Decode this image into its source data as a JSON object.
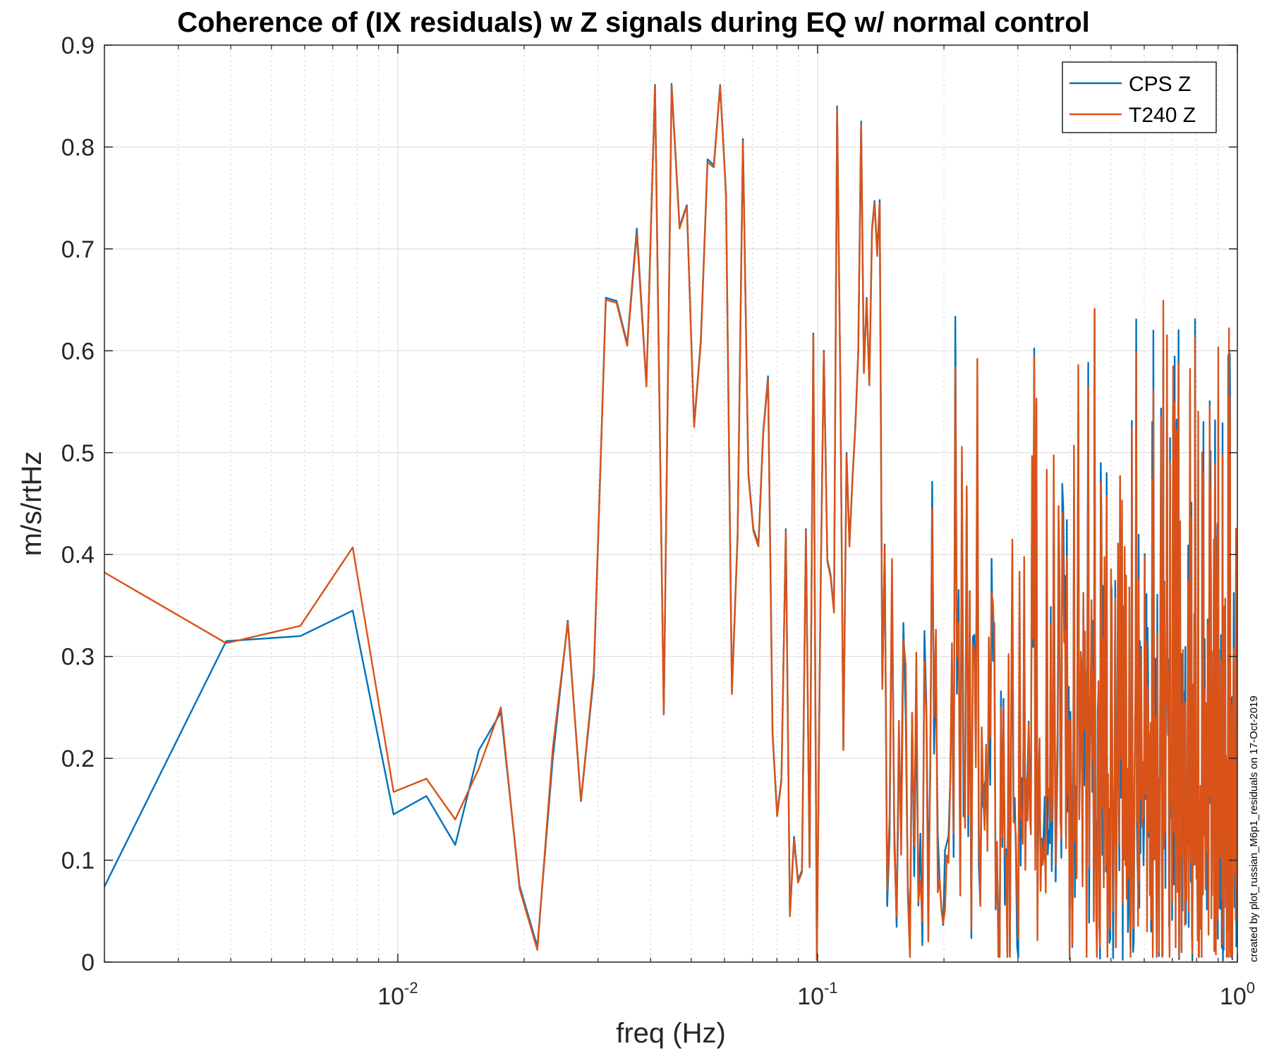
{
  "chart_data": {
    "type": "line",
    "title": "Coherence of (IX residuals) w Z signals during EQ w/ normal control",
    "xlabel": "freq (Hz)",
    "ylabel": "m/s/rtHz",
    "xscale": "log",
    "xlim": [
      0.002,
      1
    ],
    "ylim": [
      0,
      0.9
    ],
    "grid": true,
    "yticks": [
      "0",
      "0.1",
      "0.2",
      "0.3",
      "0.4",
      "0.5",
      "0.6",
      "0.7",
      "0.8",
      "0.9"
    ],
    "xticks": [
      {
        "base": "10",
        "exp": "-2",
        "value": 0.01
      },
      {
        "base": "10",
        "exp": "-1",
        "value": 0.1
      },
      {
        "base": "10",
        "exp": "0",
        "value": 1
      }
    ],
    "legend_position": "top-right",
    "series": [
      {
        "name": "CPS Z",
        "color": "#0072BD",
        "x": [
          0.00195,
          0.0039,
          0.00586,
          0.00781,
          0.00977,
          0.0117,
          0.0137,
          0.0156,
          0.0176,
          0.0195,
          0.0215,
          0.0234,
          0.0254,
          0.0273,
          0.0293,
          0.0313,
          0.0332,
          0.0352,
          0.0371,
          0.0391,
          0.041,
          0.043,
          0.0449,
          0.0469,
          0.0488,
          0.0508,
          0.0527,
          0.0547,
          0.0566,
          0.0586,
          0.0605,
          0.0625,
          0.0645,
          0.0664,
          0.0684,
          0.0703,
          0.0723,
          0.0742,
          0.0762,
          0.0781,
          0.0801,
          0.082,
          0.084,
          0.0859,
          0.0879,
          0.0898,
          0.0918,
          0.0938,
          0.0957,
          0.0977,
          0.0996,
          0.1016,
          0.1035,
          0.1055,
          0.1074,
          0.1094,
          0.1113,
          0.1133,
          0.1152,
          0.1172,
          0.1191,
          0.1211,
          0.123,
          0.125,
          0.127,
          0.1289,
          0.1309,
          0.1328,
          0.1348,
          0.1367,
          0.1387,
          0.1406,
          0.1426,
          0.1445
        ],
        "y": [
          0.065,
          0.315,
          0.32,
          0.345,
          0.145,
          0.163,
          0.115,
          0.208,
          0.245,
          0.075,
          0.015,
          0.2,
          0.335,
          0.158,
          0.28,
          0.652,
          0.649,
          0.607,
          0.72,
          0.567,
          0.861,
          0.243,
          0.862,
          0.722,
          0.743,
          0.527,
          0.61,
          0.788,
          0.782,
          0.861,
          0.755,
          0.265,
          0.42,
          0.808,
          0.48,
          0.425,
          0.41,
          0.52,
          0.575,
          0.225,
          0.145,
          0.18,
          0.425,
          0.047,
          0.123,
          0.08,
          0.09,
          0.425,
          0.095,
          0.617,
          0.003,
          0.36,
          0.6,
          0.395,
          0.38,
          0.345,
          0.84,
          0.57,
          0.21,
          0.5,
          0.41,
          0.475,
          0.527,
          0.6,
          0.825,
          0.58,
          0.652,
          0.568,
          0.72,
          0.747,
          0.695,
          0.748,
          0.27,
          0.41
        ]
      },
      {
        "name": "T240 Z",
        "color": "#D95319",
        "x": [
          0.00195,
          0.0039,
          0.00586,
          0.00781,
          0.00977,
          0.0117,
          0.0137,
          0.0156,
          0.0176,
          0.0195,
          0.0215,
          0.0234,
          0.0254,
          0.0273,
          0.0293,
          0.0313,
          0.0332,
          0.0352,
          0.0371,
          0.0391,
          0.041,
          0.043,
          0.0449,
          0.0469,
          0.0488,
          0.0508,
          0.0527,
          0.0547,
          0.0566,
          0.0586,
          0.0605,
          0.0625,
          0.0645,
          0.0664,
          0.0684,
          0.0703,
          0.0723,
          0.0742,
          0.0762,
          0.0781,
          0.0801,
          0.082,
          0.084,
          0.0859,
          0.0879,
          0.0898,
          0.0918,
          0.0938,
          0.0957,
          0.0977,
          0.0996,
          0.1016,
          0.1035,
          0.1055,
          0.1074,
          0.1094,
          0.1113,
          0.1133,
          0.1152,
          0.1172,
          0.1191,
          0.1211,
          0.123,
          0.125,
          0.127,
          0.1289,
          0.1309,
          0.1328,
          0.1348,
          0.1367,
          0.1387,
          0.1406,
          0.1426,
          0.1445
        ],
        "y": [
          0.385,
          0.313,
          0.33,
          0.407,
          0.167,
          0.18,
          0.14,
          0.19,
          0.25,
          0.072,
          0.012,
          0.21,
          0.333,
          0.158,
          0.285,
          0.65,
          0.647,
          0.605,
          0.715,
          0.565,
          0.86,
          0.243,
          0.86,
          0.72,
          0.742,
          0.525,
          0.607,
          0.785,
          0.78,
          0.86,
          0.753,
          0.263,
          0.418,
          0.805,
          0.478,
          0.423,
          0.408,
          0.518,
          0.572,
          0.223,
          0.143,
          0.178,
          0.423,
          0.045,
          0.12,
          0.078,
          0.088,
          0.423,
          0.093,
          0.615,
          0.002,
          0.358,
          0.598,
          0.393,
          0.378,
          0.343,
          0.837,
          0.568,
          0.208,
          0.498,
          0.408,
          0.473,
          0.525,
          0.598,
          0.822,
          0.578,
          0.65,
          0.566,
          0.718,
          0.745,
          0.693,
          0.745,
          0.268,
          0.408
        ]
      }
    ],
    "footnote": "created by plot_russian_M6p1_residuals on 17-Oct-2019"
  }
}
